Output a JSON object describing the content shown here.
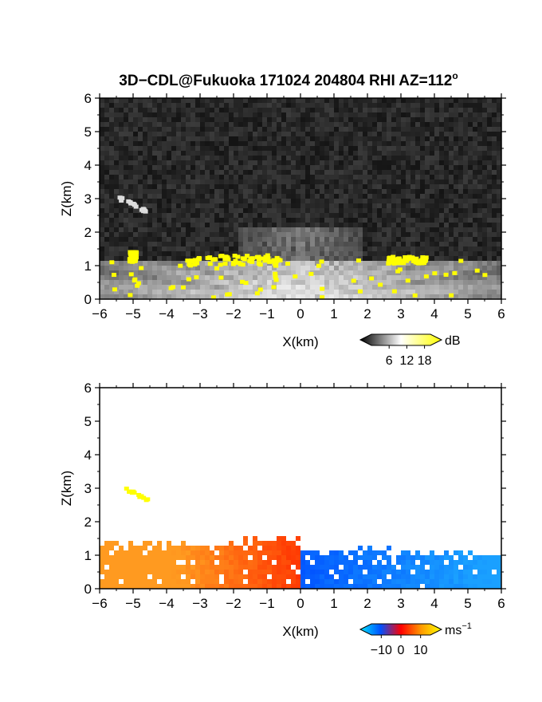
{
  "figure": {
    "title": "3D−CDL@Fukuoka 171024 204804 RHI AZ=112",
    "title_superscript": "o"
  },
  "chart_data": [
    {
      "type": "heatmap",
      "field": "backscatter intensity",
      "xlabel": "X(km)",
      "ylabel": "Z(km)",
      "xlim": [
        -6,
        6
      ],
      "ylim": [
        0,
        6
      ],
      "xticks": [
        "−6",
        "−5",
        "−4",
        "−3",
        "−2",
        "−1",
        "0",
        "1",
        "2",
        "3",
        "4",
        "5",
        "6"
      ],
      "yticks": [
        "0",
        "1",
        "2",
        "3",
        "4",
        "5",
        "6"
      ],
      "colorbar": {
        "unit": "dB",
        "ticks": [
          "6",
          "12",
          "18"
        ],
        "tick_values": [
          6,
          12,
          18
        ],
        "range": [
          0,
          20
        ],
        "colors": [
          "#000000",
          "#ffffff",
          "#ffff00"
        ]
      },
      "features": [
        {
          "kind": "near-ground high-intensity layer",
          "x": [
            -6,
            6
          ],
          "z": [
            0,
            1.2
          ]
        },
        {
          "kind": "yellow cloud echoes",
          "x": [
            -3.4,
            -0.6
          ],
          "z": [
            1.0,
            1.3
          ]
        },
        {
          "kind": "yellow cloud echoes",
          "x": [
            2.6,
            3.8
          ],
          "z": [
            1.05,
            1.25
          ]
        },
        {
          "kind": "yellow cloud echoes",
          "x": [
            -5.1,
            -4.9
          ],
          "z": [
            1.1,
            1.4
          ]
        },
        {
          "kind": "elevated aerosol streak",
          "x": [
            -5.4,
            -4.6
          ],
          "z": [
            2.6,
            3.0
          ]
        }
      ],
      "grid": false
    },
    {
      "type": "heatmap",
      "field": "radial velocity",
      "xlabel": "X(km)",
      "ylabel": "Z(km)",
      "xlim": [
        -6,
        6
      ],
      "ylim": [
        0,
        6
      ],
      "xticks": [
        "−6",
        "−5",
        "−4",
        "−3",
        "−2",
        "−1",
        "0",
        "1",
        "2",
        "3",
        "4",
        "5",
        "6"
      ],
      "yticks": [
        "0",
        "1",
        "2",
        "3",
        "4",
        "5",
        "6"
      ],
      "colorbar": {
        "unit": "ms",
        "unit_superscript": "−1",
        "ticks": [
          "−10",
          "0",
          "10"
        ],
        "tick_values": [
          -10,
          0,
          10
        ],
        "range": [
          -15,
          15
        ],
        "colors": [
          "#00e5ff",
          "#0050ff",
          "#ff0000",
          "#ff9a00",
          "#ffff00"
        ]
      },
      "features": [
        {
          "kind": "positive (orange) velocities",
          "x": [
            -6,
            0
          ],
          "z": [
            0,
            1.5
          ]
        },
        {
          "kind": "negative (blue) velocities",
          "x": [
            0,
            6
          ],
          "z": [
            0,
            1.3
          ]
        },
        {
          "kind": "yellow elevated streak",
          "x": [
            -5.3,
            -4.5
          ],
          "z": [
            2.6,
            3.0
          ]
        }
      ],
      "grid": false
    }
  ]
}
